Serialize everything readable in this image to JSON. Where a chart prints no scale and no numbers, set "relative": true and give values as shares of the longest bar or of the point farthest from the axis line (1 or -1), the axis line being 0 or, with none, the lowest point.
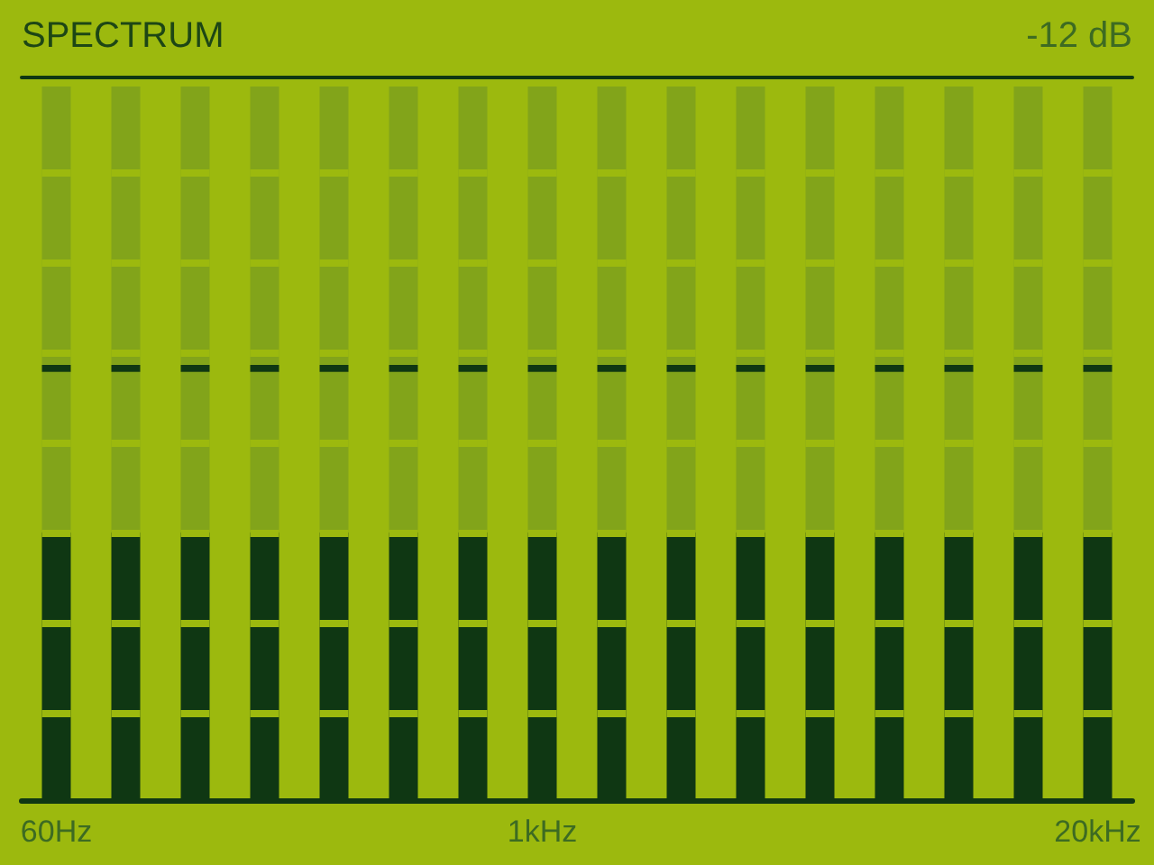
{
  "chart_data": {
    "type": "bar",
    "title": "SPECTRUM",
    "annotations": [
      "-12 dB"
    ],
    "categories": [
      "60Hz",
      null,
      null,
      null,
      null,
      null,
      null,
      "1kHz",
      null,
      null,
      null,
      null,
      null,
      null,
      null,
      "20kHz"
    ],
    "relative": true,
    "stacked": true,
    "series": [
      {
        "color": "#0f3713",
        "values": [
          0.375,
          0.375,
          0.375,
          0.375,
          0.375,
          0.375,
          0.375,
          0.375,
          0.375,
          0.375,
          0.375,
          0.375,
          0.375,
          0.375,
          0.375,
          0.375
        ]
      },
      {
        "color": "#82a41a",
        "values": [
          0.225,
          0.225,
          0.225,
          0.225,
          0.225,
          0.225,
          0.225,
          0.225,
          0.225,
          0.225,
          0.225,
          0.225,
          0.225,
          0.225,
          0.225,
          0.225
        ]
      },
      {
        "color": "#0f3713",
        "values": [
          0.01,
          0.01,
          0.01,
          0.01,
          0.01,
          0.01,
          0.01,
          0.01,
          0.01,
          0.01,
          0.01,
          0.01,
          0.01,
          0.01,
          0.01,
          0.01
        ]
      },
      {
        "color": "#82a41a",
        "values": [
          0.39,
          0.39,
          0.39,
          0.39,
          0.39,
          0.39,
          0.39,
          0.39,
          0.39,
          0.39,
          0.39,
          0.39,
          0.39,
          0.39,
          0.39,
          0.39
        ]
      }
    ]
  }
}
